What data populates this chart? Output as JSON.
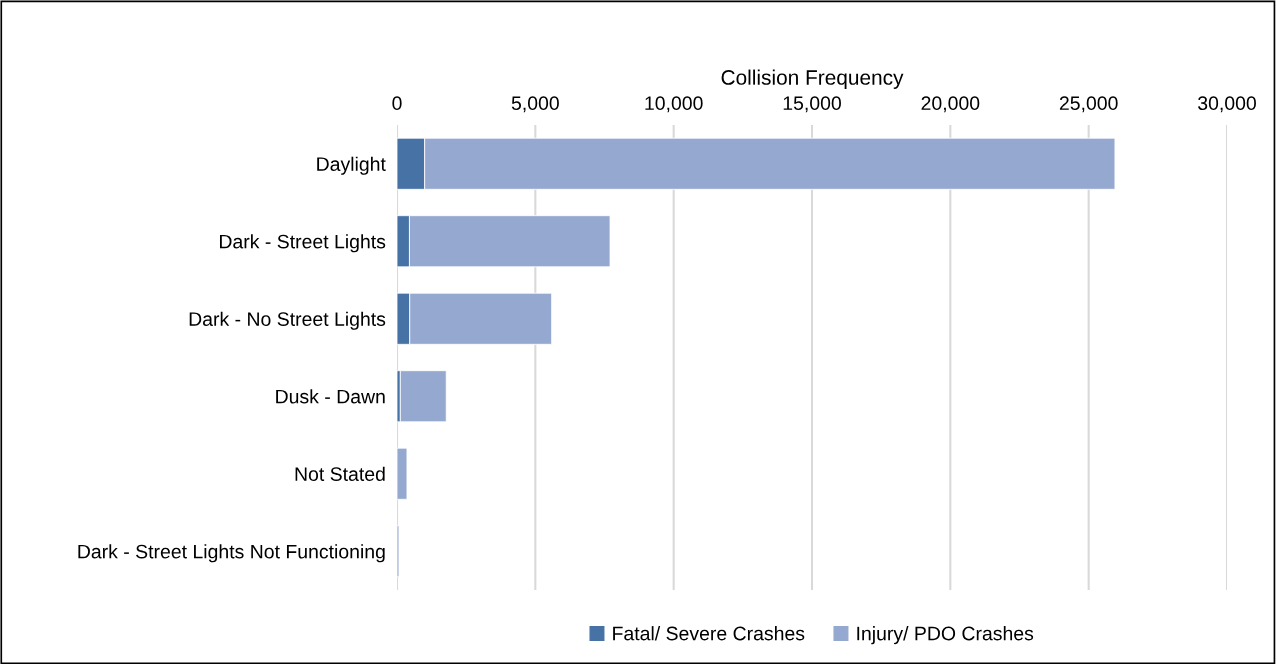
{
  "chart_data": {
    "type": "bar",
    "orientation": "horizontal",
    "stacked": true,
    "xlabel": "Collision Frequency",
    "categories": [
      "Daylight",
      "Dark - Street Lights",
      "Dark - No Street Lights",
      "Dusk - Dawn",
      "Not Stated",
      "Dark - Street Lights Not Functioning"
    ],
    "series": [
      {
        "name": "Fatal/ Severe Crashes",
        "color": "#4672a6",
        "values": [
          1000,
          450,
          460,
          120,
          null,
          null
        ]
      },
      {
        "name": "Injury/ PDO Crashes",
        "color": "#95a9d0",
        "values": [
          24950,
          7250,
          5130,
          1660,
          360,
          70
        ]
      }
    ],
    "xlim": [
      0,
      30000
    ],
    "xticks": [
      {
        "value": 0,
        "label": "0"
      },
      {
        "value": 5000,
        "label": "5,000"
      },
      {
        "value": 10000,
        "label": "10,000"
      },
      {
        "value": 15000,
        "label": "15,000"
      },
      {
        "value": 20000,
        "label": "20,000"
      },
      {
        "value": 25000,
        "label": "25,000"
      },
      {
        "value": 30000,
        "label": "30,000"
      }
    ],
    "grid": "x",
    "legend": "bottom"
  }
}
